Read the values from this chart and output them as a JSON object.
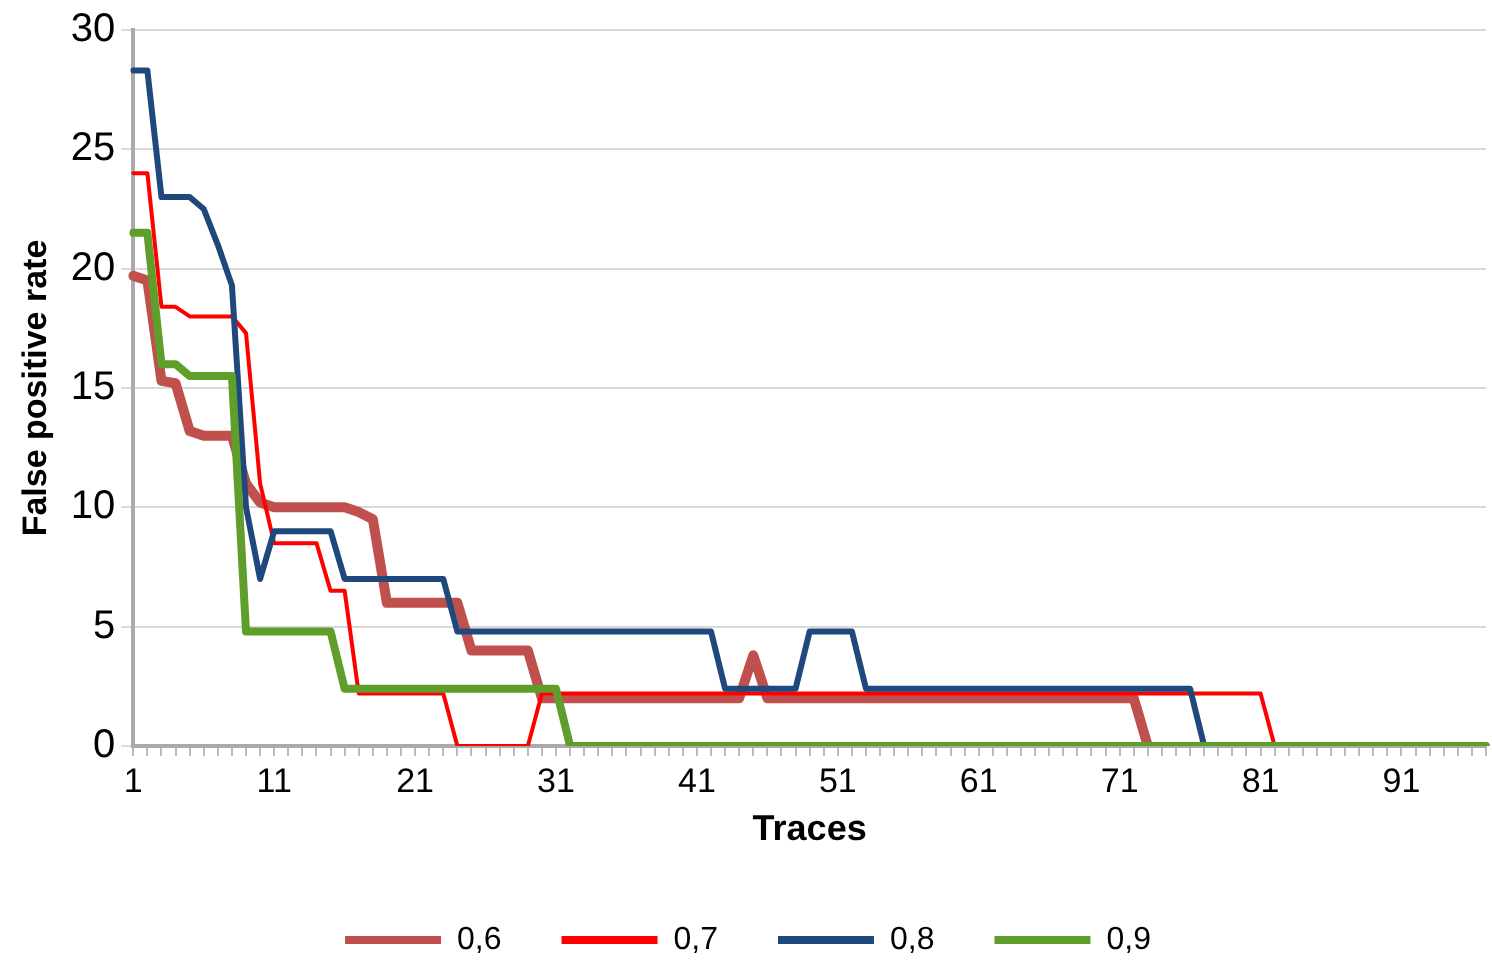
{
  "chart_data": {
    "type": "line",
    "xlabel": "Traces",
    "ylabel": "False positive rate",
    "categories": [
      "1",
      null,
      null,
      null,
      null,
      null,
      null,
      null,
      null,
      null,
      "11",
      null,
      null,
      null,
      null,
      null,
      null,
      null,
      null,
      null,
      "21",
      null,
      null,
      null,
      null,
      null,
      null,
      null,
      null,
      null,
      "31",
      null,
      null,
      null,
      null,
      null,
      null,
      null,
      null,
      null,
      "41",
      null,
      null,
      null,
      null,
      null,
      null,
      null,
      null,
      null,
      "51",
      null,
      null,
      null,
      null,
      null,
      null,
      null,
      null,
      null,
      "61",
      null,
      null,
      null,
      null,
      null,
      null,
      null,
      null,
      null,
      "71",
      null,
      null,
      null,
      null,
      null,
      null,
      null,
      null,
      null,
      "81",
      null,
      null,
      null,
      null,
      null,
      null,
      null,
      null,
      null,
      "91",
      null,
      null,
      null,
      null,
      null,
      null
    ],
    "series": [
      {
        "name": "0,6",
        "color": "#c0504d",
        "values": [
          19.7,
          19.5,
          15.3,
          15.2,
          13.2,
          13,
          13,
          13,
          11,
          10.2,
          10,
          10,
          10,
          10,
          10,
          10,
          9.8,
          9.5,
          6,
          6,
          6,
          6,
          6,
          6,
          4,
          4,
          4,
          4,
          4,
          2,
          2,
          2,
          2,
          2,
          2,
          2,
          2,
          2,
          2,
          2,
          2,
          2,
          2,
          2,
          3.8,
          2,
          2,
          2,
          2,
          2,
          2,
          2,
          2,
          2,
          2,
          2,
          2,
          2,
          2,
          2,
          2,
          2,
          2,
          2,
          2,
          2,
          2,
          2,
          2,
          2,
          2,
          2,
          0,
          null,
          null,
          null,
          null,
          null,
          null,
          null,
          null,
          null,
          null,
          null,
          null,
          null,
          null,
          null,
          null,
          null,
          null,
          null,
          null,
          null,
          null,
          null,
          null
        ]
      },
      {
        "name": "0,7",
        "color": "#ff0000",
        "values": [
          24,
          24,
          18.4,
          18.4,
          18,
          18,
          18,
          18,
          17.3,
          11,
          8.5,
          8.5,
          8.5,
          8.5,
          6.5,
          6.5,
          2.2,
          2.2,
          2.2,
          2.2,
          2.2,
          2.2,
          2.2,
          0,
          0,
          0,
          0,
          0,
          0,
          2.2,
          2.2,
          2.2,
          2.2,
          2.2,
          2.2,
          2.2,
          2.2,
          2.2,
          2.2,
          2.2,
          2.2,
          2.2,
          2.2,
          2.2,
          2.2,
          2.2,
          2.2,
          2.2,
          2.2,
          2.2,
          2.2,
          2.2,
          2.2,
          2.2,
          2.2,
          2.2,
          2.2,
          2.2,
          2.2,
          2.2,
          2.2,
          2.2,
          2.2,
          2.2,
          2.2,
          2.2,
          2.2,
          2.2,
          2.2,
          2.2,
          2.2,
          2.2,
          2.2,
          2.2,
          2.2,
          2.2,
          2.2,
          2.2,
          2.2,
          2.2,
          2.2,
          0,
          null,
          null,
          null,
          null,
          null,
          null,
          null,
          null,
          null,
          null,
          null,
          null,
          null,
          null,
          null
        ]
      },
      {
        "name": "0,8",
        "color": "#1f497d",
        "values": [
          28.3,
          28.3,
          23,
          23,
          23,
          22.5,
          21,
          19.3,
          10,
          7,
          9,
          9,
          9,
          9,
          9,
          7,
          7,
          7,
          7,
          7,
          7,
          7,
          7,
          4.8,
          4.8,
          4.8,
          4.8,
          4.8,
          4.8,
          4.8,
          4.8,
          4.8,
          4.8,
          4.8,
          4.8,
          4.8,
          4.8,
          4.8,
          4.8,
          4.8,
          4.8,
          4.8,
          2.4,
          2.4,
          2.4,
          2.4,
          2.4,
          2.4,
          4.8,
          4.8,
          4.8,
          4.8,
          2.4,
          2.4,
          2.4,
          2.4,
          2.4,
          2.4,
          2.4,
          2.4,
          2.4,
          2.4,
          2.4,
          2.4,
          2.4,
          2.4,
          2.4,
          2.4,
          2.4,
          2.4,
          2.4,
          2.4,
          2.4,
          2.4,
          2.4,
          2.4,
          0,
          null,
          null,
          null,
          null,
          null,
          null,
          null,
          null,
          null,
          null,
          null,
          null,
          null,
          null,
          null,
          null,
          null,
          null,
          null,
          null
        ]
      },
      {
        "name": "0,9",
        "color": "#5f9e2a",
        "values": [
          21.5,
          21.5,
          16,
          16,
          15.5,
          15.5,
          15.5,
          15.5,
          4.8,
          4.8,
          4.8,
          4.8,
          4.8,
          4.8,
          4.8,
          2.4,
          2.4,
          2.4,
          2.4,
          2.4,
          2.4,
          2.4,
          2.4,
          2.4,
          2.4,
          2.4,
          2.4,
          2.4,
          2.4,
          2.4,
          2.4,
          0,
          0,
          0,
          0,
          0,
          0,
          0,
          0,
          0,
          0,
          0,
          0,
          0,
          0,
          0,
          0,
          0,
          0,
          0,
          0,
          0,
          0,
          0,
          0,
          0,
          0,
          0,
          0,
          0,
          0,
          0,
          0,
          0,
          0,
          0,
          0,
          0,
          0,
          0,
          0,
          0,
          0,
          0,
          0,
          0,
          0,
          0,
          0,
          0,
          0,
          0,
          0,
          0,
          0,
          0,
          0,
          0,
          0,
          0,
          0,
          0,
          0,
          0,
          0,
          0,
          0
        ]
      }
    ],
    "ylim": [
      0,
      30
    ],
    "yticks": [
      0,
      5,
      10,
      15,
      20,
      25,
      30
    ],
    "grid": "y",
    "legend": "bottom",
    "marker": "none",
    "line_style": "solid"
  }
}
